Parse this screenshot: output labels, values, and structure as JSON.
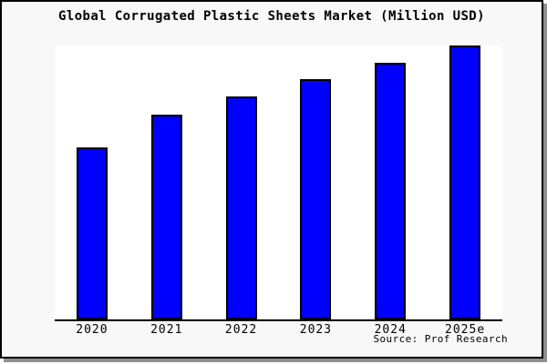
{
  "page": {
    "background": "#ffffff",
    "frame_background": "#f8f8f8",
    "frame_border_color": "#000000",
    "shadow_color": "#8f8f8f"
  },
  "chart_data": {
    "type": "bar",
    "title": "Global Corrugated Plastic Sheets Market (Million USD)",
    "categories": [
      "2020",
      "2021",
      "2022",
      "2023",
      "2024",
      "2025e"
    ],
    "values": [
      62.7,
      74.9,
      81.4,
      87.7,
      93.7,
      100
    ],
    "values_note": "No y-axis, gridlines or value labels are rendered in the image; values are bar heights estimated as percent of the tallest bar (2025e = 100).",
    "xlabel": "",
    "ylabel": "",
    "ylim": [
      0,
      100
    ],
    "grid": false,
    "legend": null,
    "bar_color": "#0000fe",
    "bar_border_color": "#000000",
    "plot_background": "#ffffff",
    "axis_color": "#000000",
    "source_label": "Source: Prof Research"
  }
}
